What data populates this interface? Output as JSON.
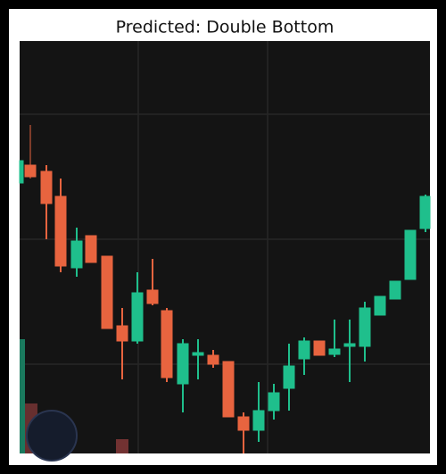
{
  "title": "Predicted: Double Bottom"
}
